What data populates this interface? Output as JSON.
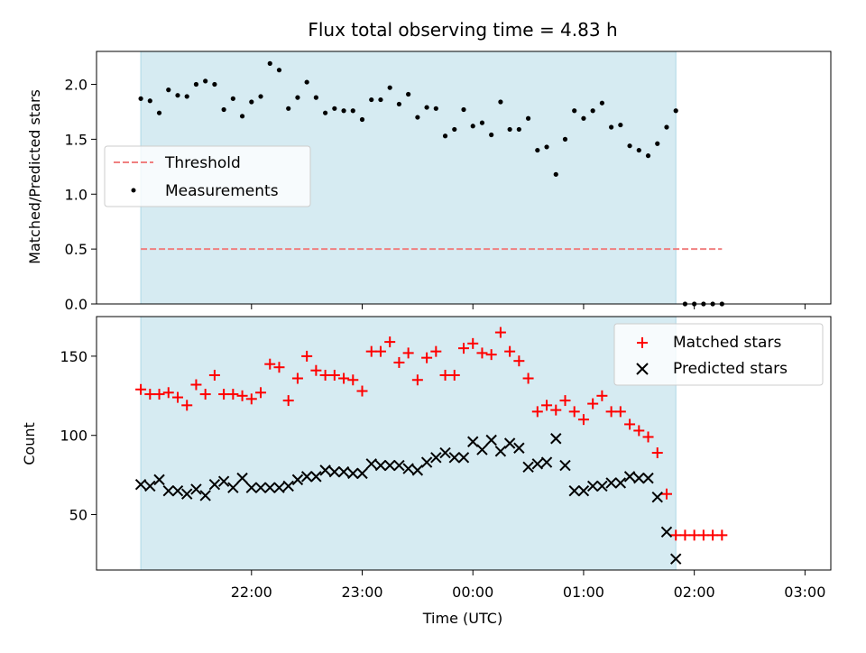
{
  "figure_title": "Flux total observing time = 4.83 h",
  "x_ticks": [
    "22:00",
    "23:00",
    "00:00",
    "01:00",
    "02:00",
    "03:00"
  ],
  "x_tick_minutes": [
    60,
    120,
    180,
    240,
    300,
    360
  ],
  "chart_data": [
    {
      "type": "scatter",
      "title": "Flux total observing time = 4.83 h",
      "xlabel": "",
      "ylabel": "Matched/Predicted stars",
      "x_unit_note": "x in minutes after 21:00 UTC",
      "xlim": [
        -24,
        374
      ],
      "ylim": [
        0,
        2.3
      ],
      "yticks": [
        0.0,
        0.5,
        1.0,
        1.5,
        2.0
      ],
      "ytick_labels": [
        "0.0",
        "0.5",
        "1.0",
        "1.5",
        "2.0"
      ],
      "legend": [
        "Threshold",
        "Measurements"
      ],
      "legend_position": "center-left",
      "observing_span": [
        0,
        290
      ],
      "series": [
        {
          "name": "Threshold",
          "style": "dashed-line",
          "color": "#f08080",
          "x": [
            0,
            315
          ],
          "y": [
            0.5,
            0.5
          ]
        },
        {
          "name": "Measurements",
          "style": "dots",
          "color": "#000000",
          "x": [
            0,
            5,
            10,
            15,
            20,
            25,
            30,
            35,
            40,
            45,
            50,
            55,
            60,
            65,
            70,
            75,
            80,
            85,
            90,
            95,
            100,
            105,
            110,
            115,
            120,
            125,
            130,
            135,
            140,
            145,
            150,
            155,
            160,
            165,
            170,
            175,
            180,
            185,
            190,
            195,
            200,
            205,
            210,
            215,
            220,
            225,
            230,
            235,
            240,
            245,
            250,
            255,
            260,
            265,
            270,
            275,
            280,
            285,
            290,
            295,
            300,
            305,
            310,
            315
          ],
          "y": [
            1.87,
            1.85,
            1.74,
            1.95,
            1.9,
            1.89,
            2.0,
            2.03,
            2.0,
            1.77,
            1.87,
            1.71,
            1.84,
            1.89,
            2.19,
            2.13,
            1.78,
            1.88,
            2.02,
            1.88,
            1.74,
            1.78,
            1.76,
            1.76,
            1.68,
            1.86,
            1.86,
            1.97,
            1.82,
            1.91,
            1.7,
            1.79,
            1.78,
            1.53,
            1.59,
            1.77,
            1.62,
            1.65,
            1.54,
            1.84,
            1.59,
            1.59,
            1.69,
            1.4,
            1.43,
            1.18,
            1.5,
            1.76,
            1.69,
            1.76,
            1.83,
            1.61,
            1.63,
            1.44,
            1.4,
            1.35,
            1.46,
            1.61,
            1.76,
            0.0,
            0.0,
            0.0,
            0.0,
            0.0
          ]
        }
      ]
    },
    {
      "type": "scatter",
      "title": "",
      "xlabel": "Time (UTC)",
      "ylabel": "Count",
      "xlim": [
        -24,
        374
      ],
      "ylim": [
        15,
        175
      ],
      "yticks": [
        50,
        100,
        150
      ],
      "ytick_labels": [
        "50",
        "100",
        "150"
      ],
      "legend": [
        "Matched stars",
        "Predicted stars"
      ],
      "legend_position": "top-right",
      "observing_span": [
        0,
        290
      ],
      "series": [
        {
          "name": "Matched stars",
          "marker": "+",
          "color": "#ff0000",
          "x": [
            0,
            5,
            10,
            15,
            20,
            25,
            30,
            35,
            40,
            45,
            50,
            55,
            60,
            65,
            70,
            75,
            80,
            85,
            90,
            95,
            100,
            105,
            110,
            115,
            120,
            125,
            130,
            135,
            140,
            145,
            150,
            155,
            160,
            165,
            170,
            175,
            180,
            185,
            190,
            195,
            200,
            205,
            210,
            215,
            220,
            225,
            230,
            235,
            240,
            245,
            250,
            255,
            260,
            265,
            270,
            275,
            280,
            285,
            290,
            295,
            300,
            305,
            310,
            315
          ],
          "y": [
            129,
            126,
            126,
            127,
            124,
            119,
            132,
            126,
            138,
            126,
            126,
            125,
            123,
            127,
            145,
            143,
            122,
            136,
            150,
            141,
            138,
            138,
            136,
            135,
            128,
            153,
            153,
            159,
            146,
            152,
            135,
            149,
            153,
            138,
            138,
            155,
            158,
            152,
            151,
            165,
            153,
            147,
            136,
            115,
            119,
            116,
            122,
            115,
            110,
            120,
            125,
            115,
            115,
            107,
            103,
            99,
            89,
            63,
            37,
            37,
            37,
            37,
            37,
            37
          ]
        },
        {
          "name": "Predicted stars",
          "marker": "x",
          "color": "#000000",
          "x": [
            0,
            5,
            10,
            15,
            20,
            25,
            30,
            35,
            40,
            45,
            50,
            55,
            60,
            65,
            70,
            75,
            80,
            85,
            90,
            95,
            100,
            105,
            110,
            115,
            120,
            125,
            130,
            135,
            140,
            145,
            150,
            155,
            160,
            165,
            170,
            175,
            180,
            185,
            190,
            195,
            200,
            205,
            210,
            215,
            220,
            225,
            230,
            235,
            240,
            245,
            250,
            255,
            260,
            265,
            270,
            275,
            280,
            285,
            290
          ],
          "y": [
            69,
            68,
            72,
            65,
            65,
            63,
            66,
            62,
            69,
            71,
            67,
            73,
            67,
            67,
            67,
            67,
            68,
            72,
            74,
            74,
            78,
            77,
            77,
            76,
            76,
            82,
            81,
            81,
            81,
            79,
            78,
            83,
            86,
            89,
            86,
            86,
            96,
            91,
            97,
            90,
            95,
            92,
            80,
            82,
            83,
            98,
            81,
            65,
            65,
            68,
            68,
            70,
            70,
            74,
            73,
            73,
            61,
            39,
            22
          ]
        }
      ]
    }
  ]
}
